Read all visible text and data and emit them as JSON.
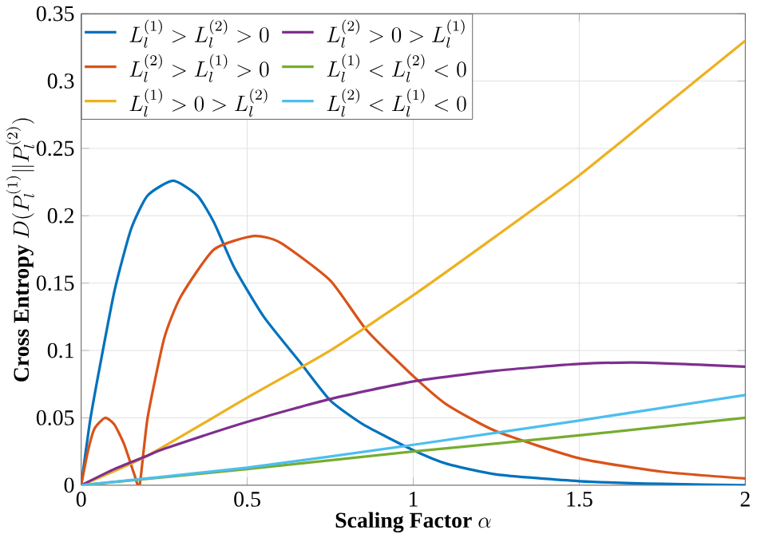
{
  "chart_data": {
    "type": "line",
    "xlabel": "\\textbf{Scaling Factor} \\ \\alpha",
    "ylabel": "\\textbf{Cross Entropy} \\ D(P_l^{(1)}\\|P_l^{(2)})",
    "xlim": [
      0,
      2
    ],
    "ylim": [
      0,
      0.35
    ],
    "xticks": [
      0,
      0.5,
      1,
      1.5,
      2
    ],
    "yticks": [
      0,
      0.05,
      0.1,
      0.15,
      0.2,
      0.25,
      0.3,
      0.35
    ],
    "grid": true,
    "legend": "top left",
    "line_style": "solid",
    "marker": "none",
    "series": [
      {
        "name": "L_l^{(1)}>L_l^{(2)}>0",
        "color": "#0072bd",
        "x": [
          0,
          0.025,
          0.05,
          0.1,
          0.15,
          0.2,
          0.277,
          0.35,
          0.4,
          0.46,
          0.55,
          0.66,
          0.75,
          0.85,
          1,
          1.1,
          1.25,
          1.5,
          1.75,
          2
        ],
        "values": [
          0,
          0.045,
          0.08,
          0.144,
          0.19,
          0.215,
          0.226,
          0.215,
          0.195,
          0.162,
          0.125,
          0.091,
          0.063,
          0.045,
          0.026,
          0.016,
          0.008,
          0.003,
          0.001,
          0
        ]
      },
      {
        "name": "L_l^{(2)}>L_l^{(1)}>0",
        "color": "#d95319",
        "x": [
          0,
          0.02,
          0.04,
          0.072,
          0.1,
          0.13,
          0.16,
          0.176,
          0.2,
          0.25,
          0.3,
          0.4,
          0.52,
          0.6,
          0.75,
          0.86,
          1,
          1.1,
          1.25,
          1.5,
          1.75,
          2
        ],
        "values": [
          0,
          0.025,
          0.042,
          0.05,
          0.045,
          0.03,
          0.008,
          0,
          0.05,
          0.109,
          0.14,
          0.175,
          0.185,
          0.18,
          0.152,
          0.115,
          0.081,
          0.06,
          0.04,
          0.02,
          0.01,
          0.005
        ]
      },
      {
        "name": "L_l^{(1)}>0>L_l^{(2)}",
        "color": "#edb120",
        "x": [
          0,
          0.2,
          0.5,
          0.75,
          1,
          1.25,
          1.5,
          1.75,
          2
        ],
        "values": [
          0,
          0.022,
          0.065,
          0.1,
          0.141,
          0.185,
          0.23,
          0.28,
          0.33
        ]
      },
      {
        "name": "L_l^{(2)}>0>L_l^{(1)}",
        "color": "#7e2f8e",
        "x": [
          0,
          0.1,
          0.2,
          0.25,
          0.5,
          0.75,
          1,
          1.25,
          1.5,
          1.7,
          2
        ],
        "values": [
          0,
          0.012,
          0.022,
          0.027,
          0.047,
          0.064,
          0.077,
          0.085,
          0.09,
          0.091,
          0.088
        ]
      },
      {
        "name": "L_l^{(1)}<L_l^{(2)}<0",
        "color": "#77ac30",
        "x": [
          0,
          0.5,
          1,
          1.5,
          2
        ],
        "values": [
          0,
          0.012,
          0.025,
          0.037,
          0.05
        ]
      },
      {
        "name": "L_l^{(2)}<L_l^{(1)}<0",
        "color": "#4dbeee",
        "x": [
          0,
          0.5,
          1,
          1.5,
          2
        ],
        "values": [
          0,
          0.013,
          0.03,
          0.048,
          0.067
        ]
      }
    ]
  }
}
